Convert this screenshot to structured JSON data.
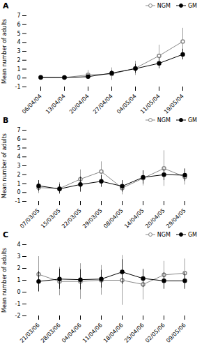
{
  "chart_data": [
    {
      "type": "line",
      "title": "A",
      "ylabel": "Mean number of adults",
      "categories": [
        "06/04/04",
        "13/04/04",
        "20/04/04",
        "27/04/04",
        "04/05/04",
        "11/05/04",
        "19/05/04"
      ],
      "series": [
        {
          "name": "NGM",
          "color": "#888888",
          "marker": "open circle",
          "values": [
            0.1,
            0.05,
            0.35,
            0.45,
            1.1,
            2.5,
            4.1
          ],
          "errors": [
            0.1,
            0.05,
            0.5,
            0.7,
            0.8,
            1.2,
            1.5
          ]
        },
        {
          "name": "GM",
          "color": "#000000",
          "marker": "circle",
          "values": [
            0.05,
            0.05,
            0.15,
            0.55,
            1.05,
            1.65,
            2.65
          ],
          "errors": [
            0.05,
            0.05,
            0.2,
            0.3,
            0.5,
            0.6,
            0.6
          ]
        }
      ],
      "ylim": [
        -1,
        7
      ],
      "yticks": [
        -1,
        0,
        1,
        2,
        3,
        4,
        5,
        6,
        7
      ],
      "grid": false,
      "legend": "upper right"
    },
    {
      "type": "line",
      "title": "B",
      "ylabel": "Mean number of adults",
      "categories": [
        "07/03/05",
        "15/03/05",
        "22/03/05",
        "29/03/05",
        "08/04/05",
        "14/04/05",
        "20/04/05",
        "29/04/05"
      ],
      "series": [
        {
          "name": "NGM",
          "color": "#888888",
          "marker": "open circle",
          "values": [
            0.55,
            0.45,
            1.5,
            2.35,
            0.5,
            1.6,
            2.7,
            1.75
          ],
          "errors": [
            0.65,
            0.65,
            1.05,
            1.1,
            0.75,
            0.85,
            2.0,
            0.9
          ]
        },
        {
          "name": "GM",
          "color": "#000000",
          "marker": "circle",
          "values": [
            0.75,
            0.4,
            0.9,
            1.25,
            0.7,
            1.7,
            2.0,
            1.95
          ],
          "errors": [
            0.6,
            0.5,
            0.85,
            0.65,
            0.65,
            0.75,
            0.65,
            0.7
          ]
        }
      ],
      "ylim": [
        -1,
        7
      ],
      "yticks": [
        -1,
        0,
        1,
        2,
        3,
        4,
        5,
        6,
        7
      ],
      "grid": false,
      "legend": "upper right"
    },
    {
      "type": "line",
      "title": "C",
      "ylabel": "Mean number of adults",
      "categories": [
        "21/03/06",
        "28/03/06",
        "04/04/06",
        "11/04/06",
        "18/04/06",
        "25/04/06",
        "02/05/06",
        "09/05/06"
      ],
      "series": [
        {
          "name": "NGM",
          "color": "#888888",
          "marker": "open circle",
          "values": [
            1.5,
            0.9,
            0.9,
            1.0,
            1.0,
            0.65,
            1.45,
            1.6
          ],
          "errors": [
            1.5,
            1.2,
            1.5,
            1.25,
            2.1,
            1.3,
            1.15,
            1.2
          ]
        },
        {
          "name": "GM",
          "color": "#000000",
          "marker": "circle",
          "values": [
            0.9,
            1.1,
            1.05,
            1.1,
            1.7,
            1.15,
            0.95,
            0.95
          ],
          "errors": [
            0.85,
            0.85,
            0.85,
            0.75,
            1.05,
            0.75,
            0.7,
            0.7
          ]
        }
      ],
      "ylim": [
        -2,
        4
      ],
      "yticks": [
        -2,
        -1,
        0,
        1,
        2,
        3,
        4
      ],
      "grid": false,
      "legend": "upper right"
    }
  ]
}
